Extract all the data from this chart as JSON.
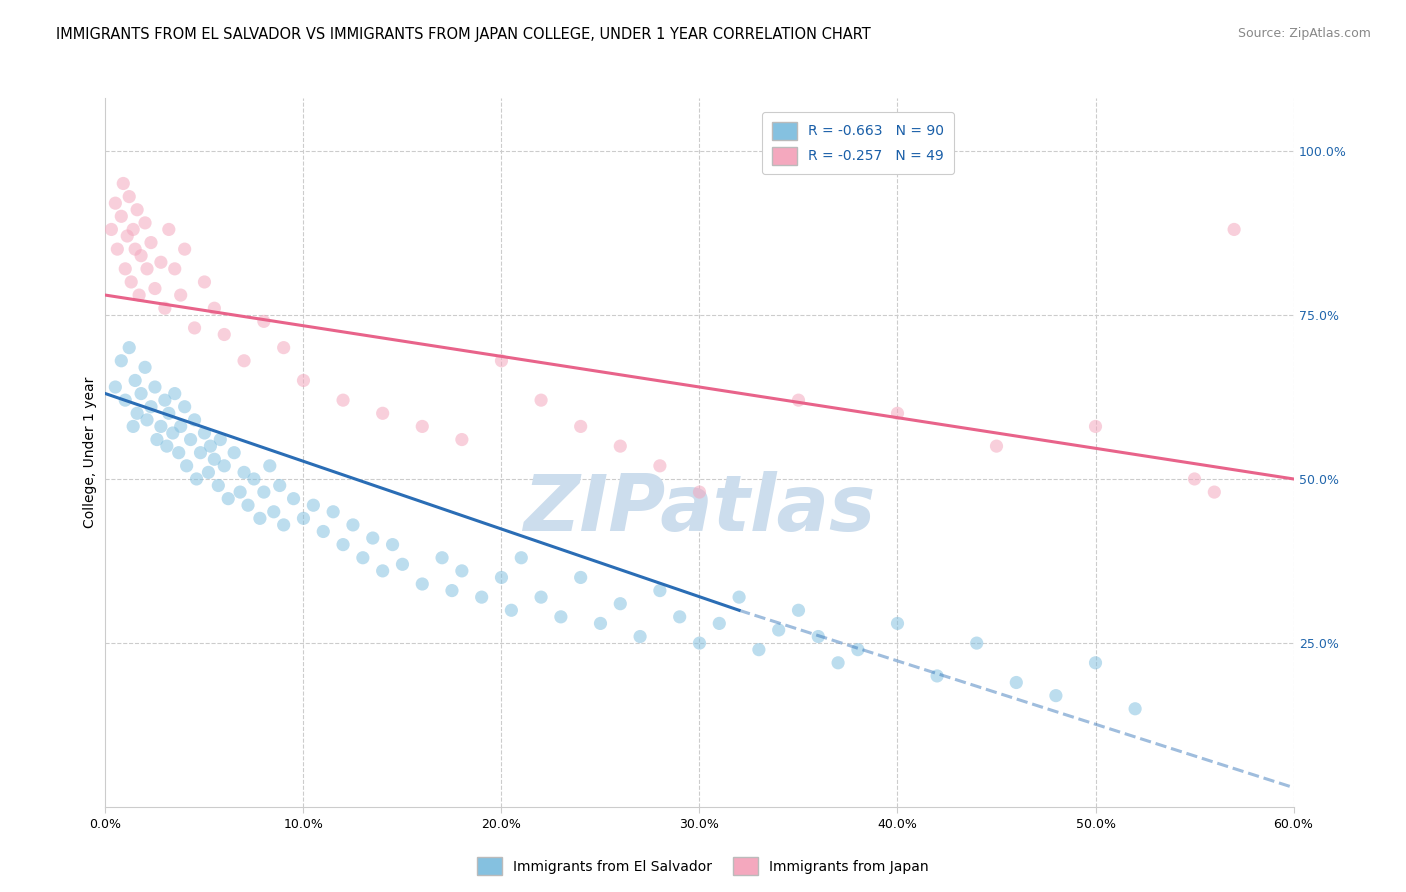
{
  "title": "IMMIGRANTS FROM EL SALVADOR VS IMMIGRANTS FROM JAPAN COLLEGE, UNDER 1 YEAR CORRELATION CHART",
  "source": "Source: ZipAtlas.com",
  "ylabel": "College, Under 1 year",
  "x_tick_labels": [
    "0.0%",
    "10.0%",
    "20.0%",
    "30.0%",
    "40.0%",
    "50.0%",
    "60.0%"
  ],
  "x_tick_values": [
    0,
    10,
    20,
    30,
    40,
    50,
    60
  ],
  "y_tick_labels": [
    "25.0%",
    "50.0%",
    "75.0%",
    "100.0%"
  ],
  "y_tick_values": [
    25,
    50,
    75,
    100
  ],
  "xlim": [
    0,
    60
  ],
  "ylim": [
    0,
    108
  ],
  "legend_label_blue": "Immigrants from El Salvador",
  "legend_label_pink": "Immigrants from Japan",
  "r_blue_text": "R = -0.663",
  "n_blue_text": "N = 90",
  "r_pink_text": "R = -0.257",
  "n_pink_text": "N = 49",
  "blue_color": "#85c1e0",
  "pink_color": "#f4a8be",
  "blue_line_color": "#2a6db5",
  "pink_line_color": "#e8638a",
  "watermark_text": "ZIPatlas",
  "watermark_color": "#ccdded",
  "background_color": "#ffffff",
  "grid_color": "#cccccc",
  "title_fontsize": 10.5,
  "axis_label_fontsize": 10,
  "tick_fontsize": 9,
  "legend_fontsize": 10,
  "source_fontsize": 9,
  "scatter_size": 90,
  "scatter_alpha": 0.55,
  "line_width": 2.2,
  "blue_regline": [
    0,
    63,
    32,
    30
  ],
  "blue_dashed": [
    32,
    30,
    60,
    3
  ],
  "pink_regline": [
    0,
    78,
    60,
    50
  ],
  "blue_scatter_x": [
    0.5,
    0.8,
    1.0,
    1.2,
    1.4,
    1.5,
    1.6,
    1.8,
    2.0,
    2.1,
    2.3,
    2.5,
    2.6,
    2.8,
    3.0,
    3.1,
    3.2,
    3.4,
    3.5,
    3.7,
    3.8,
    4.0,
    4.1,
    4.3,
    4.5,
    4.6,
    4.8,
    5.0,
    5.2,
    5.3,
    5.5,
    5.7,
    5.8,
    6.0,
    6.2,
    6.5,
    6.8,
    7.0,
    7.2,
    7.5,
    7.8,
    8.0,
    8.3,
    8.5,
    8.8,
    9.0,
    9.5,
    10.0,
    10.5,
    11.0,
    11.5,
    12.0,
    12.5,
    13.0,
    13.5,
    14.0,
    14.5,
    15.0,
    16.0,
    17.0,
    17.5,
    18.0,
    19.0,
    20.0,
    20.5,
    21.0,
    22.0,
    23.0,
    24.0,
    25.0,
    26.0,
    27.0,
    28.0,
    29.0,
    30.0,
    31.0,
    32.0,
    33.0,
    34.0,
    35.0,
    36.0,
    37.0,
    38.0,
    40.0,
    42.0,
    44.0,
    46.0,
    48.0,
    50.0,
    52.0
  ],
  "blue_scatter_y": [
    64,
    68,
    62,
    70,
    58,
    65,
    60,
    63,
    67,
    59,
    61,
    64,
    56,
    58,
    62,
    55,
    60,
    57,
    63,
    54,
    58,
    61,
    52,
    56,
    59,
    50,
    54,
    57,
    51,
    55,
    53,
    49,
    56,
    52,
    47,
    54,
    48,
    51,
    46,
    50,
    44,
    48,
    52,
    45,
    49,
    43,
    47,
    44,
    46,
    42,
    45,
    40,
    43,
    38,
    41,
    36,
    40,
    37,
    34,
    38,
    33,
    36,
    32,
    35,
    30,
    38,
    32,
    29,
    35,
    28,
    31,
    26,
    33,
    29,
    25,
    28,
    32,
    24,
    27,
    30,
    26,
    22,
    24,
    28,
    20,
    25,
    19,
    17,
    22,
    15
  ],
  "pink_scatter_x": [
    0.3,
    0.5,
    0.6,
    0.8,
    0.9,
    1.0,
    1.1,
    1.2,
    1.3,
    1.4,
    1.5,
    1.6,
    1.7,
    1.8,
    2.0,
    2.1,
    2.3,
    2.5,
    2.8,
    3.0,
    3.2,
    3.5,
    3.8,
    4.0,
    4.5,
    5.0,
    5.5,
    6.0,
    7.0,
    8.0,
    9.0,
    10.0,
    12.0,
    14.0,
    16.0,
    18.0,
    20.0,
    22.0,
    24.0,
    26.0,
    28.0,
    30.0,
    35.0,
    40.0,
    45.0,
    50.0,
    55.0,
    56.0,
    57.0
  ],
  "pink_scatter_y": [
    88,
    92,
    85,
    90,
    95,
    82,
    87,
    93,
    80,
    88,
    85,
    91,
    78,
    84,
    89,
    82,
    86,
    79,
    83,
    76,
    88,
    82,
    78,
    85,
    73,
    80,
    76,
    72,
    68,
    74,
    70,
    65,
    62,
    60,
    58,
    56,
    68,
    62,
    58,
    55,
    52,
    48,
    62,
    60,
    55,
    58,
    50,
    48,
    88
  ]
}
